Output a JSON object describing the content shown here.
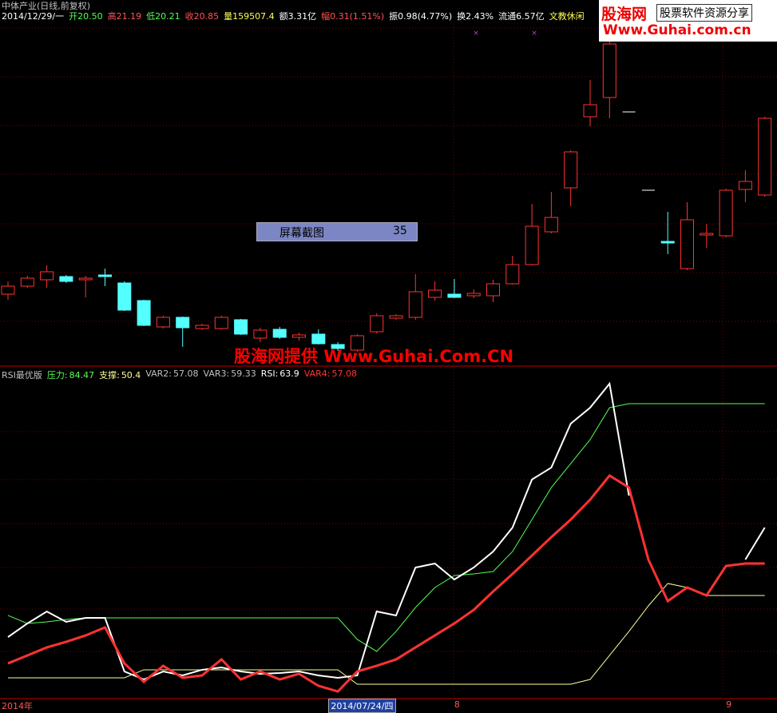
{
  "header": {
    "title": "中体产业(日线,前复权)",
    "info": [
      {
        "text": "2014/12/29/一",
        "color": "#ffffff"
      },
      {
        "text": "开20.50",
        "color": "#54ff54"
      },
      {
        "text": "高21.19",
        "color": "#ff5454"
      },
      {
        "text": "低20.21",
        "color": "#54ff54"
      },
      {
        "text": "收20.85",
        "color": "#ff5454"
      },
      {
        "text": "量159507.4",
        "color": "#ffff54"
      },
      {
        "text": "额3.31亿",
        "color": "#ffffff"
      },
      {
        "text": "幅0.31(1.51%)",
        "color": "#ff5454"
      },
      {
        "text": "振0.98(4.77%)",
        "color": "#ffffff"
      },
      {
        "text": "换2.43%",
        "color": "#ffffff"
      },
      {
        "text": "流通6.57亿",
        "color": "#ffffff"
      },
      {
        "text": "文教休闲",
        "color": "#ffff54"
      }
    ]
  },
  "logo": {
    "name": "股海网",
    "slogan": "股票软件资源分享",
    "url": "Www.Guhai.com.cn"
  },
  "watermark": "股海网提供 Www.Guhai.Com.CN",
  "popup": {
    "label": "屏幕截图",
    "count": "35"
  },
  "chart_data": [
    {
      "type": "candlestick",
      "up_color": "#ff3232",
      "down_color": "#54ffff",
      "flat_color": "#ffffff",
      "ylim": [
        6.2,
        22.8
      ],
      "open": [
        9.28,
        9.68,
        10.0,
        10.16,
        10.0,
        10.24,
        9.84,
        8.96,
        7.64,
        8.12,
        7.56,
        7.56,
        8.0,
        7.08,
        7.52,
        7.12,
        7.28,
        6.76,
        6.48,
        7.4,
        8.08,
        8.12,
        9.12,
        9.28,
        9.2,
        9.2,
        9.8,
        10.76,
        12.4,
        14.6,
        18.16,
        19.12,
        18.4,
        14.48,
        11.92,
        10.56,
        12.24,
        12.2,
        14.52,
        14.24
      ],
      "close": [
        9.68,
        10.08,
        10.4,
        9.92,
        10.08,
        10.16,
        8.48,
        7.72,
        8.12,
        7.6,
        7.72,
        8.12,
        7.28,
        7.48,
        7.12,
        7.24,
        6.8,
        6.56,
        7.2,
        8.2,
        8.2,
        9.4,
        9.48,
        9.12,
        9.32,
        9.8,
        10.76,
        12.68,
        13.12,
        16.4,
        18.76,
        21.8,
        18.4,
        14.48,
        11.84,
        13.0,
        12.32,
        14.48,
        14.92,
        18.08
      ],
      "high": [
        9.92,
        10.2,
        10.72,
        10.24,
        10.2,
        10.56,
        9.92,
        9.0,
        8.2,
        8.16,
        7.8,
        8.2,
        8.04,
        7.6,
        7.64,
        7.36,
        7.52,
        6.88,
        7.28,
        8.32,
        8.28,
        10.28,
        9.92,
        10.04,
        9.52,
        10.0,
        11.2,
        13.8,
        14.4,
        16.48,
        20.0,
        22.4,
        18.4,
        14.48,
        13.4,
        13.88,
        12.8,
        14.56,
        15.48,
        18.16
      ],
      "low": [
        9.0,
        9.6,
        9.6,
        9.84,
        9.12,
        9.68,
        8.44,
        7.68,
        7.56,
        6.64,
        7.48,
        7.52,
        7.24,
        6.88,
        7.04,
        6.96,
        6.76,
        6.44,
        6.4,
        7.32,
        8.0,
        8.0,
        8.96,
        9.08,
        9.08,
        8.88,
        9.76,
        10.72,
        12.32,
        13.68,
        17.68,
        18.08,
        18.4,
        14.48,
        11.28,
        10.48,
        11.6,
        12.12,
        13.88,
        14.16
      ]
    },
    {
      "type": "line",
      "title": "RSI最优版",
      "ylim": [
        31.2,
        90.86
      ],
      "categories": [
        "2014年",
        null,
        null,
        null,
        null,
        null,
        null,
        null,
        null,
        null,
        null,
        null,
        null,
        null,
        null,
        null,
        null,
        null,
        "2014/07/24/四",
        null,
        null,
        null,
        null,
        "8",
        null,
        null,
        null,
        null,
        null,
        null,
        null,
        null,
        null,
        null,
        null,
        null,
        null,
        "9",
        null,
        null
      ],
      "series": [
        {
          "name": "压力:",
          "legend_value": 84.47,
          "color": "#54ff54",
          "width": 1,
          "values": [
            46.83,
            45.41,
            45.69,
            46.12,
            46.4,
            46.4,
            46.4,
            46.4,
            46.4,
            46.4,
            46.4,
            46.4,
            46.4,
            46.4,
            46.4,
            46.4,
            46.4,
            46.4,
            42.57,
            40.44,
            43.99,
            48.25,
            51.8,
            53.93,
            54.21,
            54.64,
            58.19,
            63.87,
            69.56,
            73.82,
            78.08,
            83.76,
            84.47,
            84.47,
            84.47,
            84.47,
            84.47,
            84.47,
            84.47,
            84.47
          ]
        },
        {
          "name": "支撑:",
          "legend_value": 50.4,
          "color": "#ffff9a",
          "width": 1,
          "values": [
            35.75,
            35.75,
            35.75,
            35.75,
            35.75,
            35.75,
            35.75,
            37.17,
            37.17,
            37.17,
            37.17,
            37.17,
            37.17,
            37.17,
            37.17,
            37.17,
            37.17,
            37.17,
            34.61,
            34.61,
            34.61,
            34.61,
            34.61,
            34.61,
            34.61,
            34.61,
            34.61,
            34.61,
            34.61,
            34.61,
            35.46,
            39.73,
            43.99,
            48.53,
            52.51,
            51.8,
            50.38,
            50.38,
            50.38,
            50.38
          ]
        },
        {
          "name": "RSI:",
          "legend_value": 63.9,
          "color": "#ffffff",
          "width": 2,
          "values": [
            42.99,
            45.41,
            47.54,
            45.69,
            46.4,
            46.4,
            36.88,
            35.46,
            36.88,
            36.17,
            37.17,
            37.59,
            36.88,
            36.46,
            36.6,
            36.88,
            36.17,
            35.75,
            36.17,
            47.54,
            46.83,
            55.35,
            56.06,
            53.22,
            55.35,
            58.19,
            62.45,
            70.98,
            73.11,
            80.92,
            83.76,
            88.02,
            68.13,
            null,
            null,
            null,
            null,
            null,
            56.77,
            62.45
          ]
        },
        {
          "name": "VAR4:",
          "legend_value": 57.08,
          "color": "#ff3232",
          "width": 3,
          "values": [
            38.31,
            39.73,
            41.15,
            42.14,
            43.28,
            44.7,
            38.31,
            35.04,
            37.88,
            35.75,
            36.17,
            39.02,
            35.46,
            36.88,
            35.46,
            36.46,
            34.33,
            33.33,
            36.88,
            37.88,
            39.02,
            41.15,
            43.28,
            45.41,
            47.82,
            51.09,
            54.21,
            57.48,
            60.75,
            63.87,
            67.42,
            71.69,
            69.56,
            56.77,
            49.38,
            51.8,
            50.38,
            55.63,
            56.06,
            56.06
          ]
        }
      ],
      "extra_legend": [
        {
          "name": "VAR2:",
          "value": 57.08,
          "color": "#c0c0c0"
        },
        {
          "name": "VAR3:",
          "value": 59.33,
          "color": "#c0c0c0"
        }
      ]
    }
  ]
}
